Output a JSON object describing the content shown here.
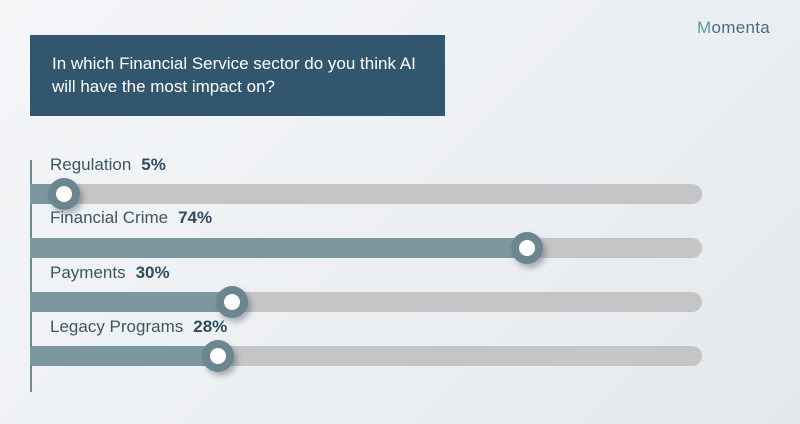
{
  "brand": {
    "first_letter": "M",
    "rest": "omenta"
  },
  "question": "In which Financial Service sector do you think AI will have the most impact on?",
  "chart_data": {
    "type": "bar",
    "orientation": "horizontal",
    "title": "In which Financial Service sector do you think AI will have the most impact on?",
    "categories": [
      "Regulation",
      "Financial Crime",
      "Payments",
      "Legacy Programs"
    ],
    "values": [
      5,
      74,
      30,
      28
    ],
    "value_labels": [
      "5%",
      "74%",
      "30%",
      "28%"
    ],
    "unit": "%",
    "xlim": [
      0,
      100
    ],
    "colors": {
      "fill": "#7d979e",
      "track": "#c5c5c5",
      "knob": "#6a8790",
      "header": "#33566f"
    }
  }
}
